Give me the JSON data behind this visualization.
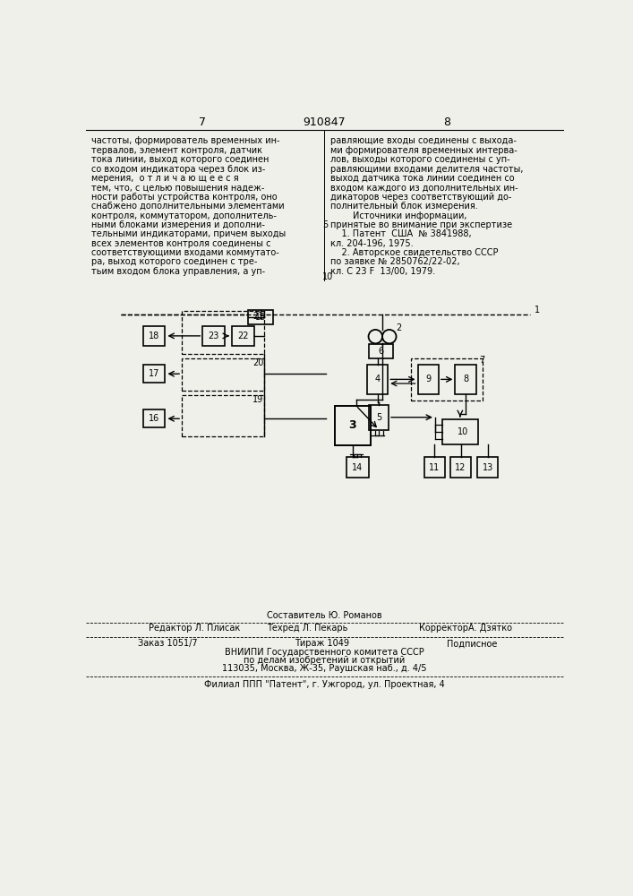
{
  "page_number_left": "7",
  "page_number_right": "8",
  "patent_number": "910847",
  "bg_color": "#f0f0eb",
  "text_left_lines": [
    "частоты, формирователь временных ин-",
    "тервалов, элемент контроля, датчик",
    "тока линии, выход которого соединен",
    "со входом индикатора через блок из-",
    "мерения,  о т л и ч а ю щ е е с я",
    "тем, что, с целью повышения надеж-",
    "ности работы устройства контроля, оно",
    "снабжено дополнительными элементами",
    "контроля, коммутатором, дополнитель-",
    "ными блоками измерения и дополни-",
    "тельными индикаторами, причем выходы",
    "всех элементов контроля соединены с",
    "соответствующими входами коммутато-",
    "ра, выход которого соединен с тре-",
    "тьим входом блока управления, а уп-"
  ],
  "text_right_lines": [
    "равляющие входы соединены с выхода-",
    "ми формирователя временных интерва-",
    "лов, выходы которого соединены с уп-",
    "равляющими входами делителя частоты,",
    "выход датчика тока линии соединен со",
    "входом каждого из дополнительных ин-",
    "дикаторов через соответствующий до-",
    "полнительный блок измерения.",
    "        Источники информации,",
    "принятые во внимание при экспертизе",
    "    1. Патент  США  № 3841988,",
    "кл. 204-196, 1975.",
    "    2. Авторское свидетельство СССР",
    "по заявке № 2850762/22-02,",
    "кл. С 23 F  13/00, 1979."
  ],
  "margin_num_5": "5",
  "margin_num_10": "10",
  "footer_composer": "Составитель Ю. Романов",
  "footer_editor": "Редактор Л. Плисак",
  "footer_tech": "Техред Л. Пекарь",
  "footer_corrector": "КорректорА. Дзятко",
  "footer_order": "Заказ 1051/7",
  "footer_tirazh": "Тираж 1049",
  "footer_podp": "Подписное",
  "footer_vniipи": "ВНИИПИ Государственного комитета СССР",
  "footer_dela": "по делам изобретений и открытий",
  "footer_addr": "113035, Москва, Ж-35, Раушская наб., д. 4/5",
  "footer_filial": "Филиал ППП \"Патент\", г. Ужгород, ул. Проектная, 4"
}
